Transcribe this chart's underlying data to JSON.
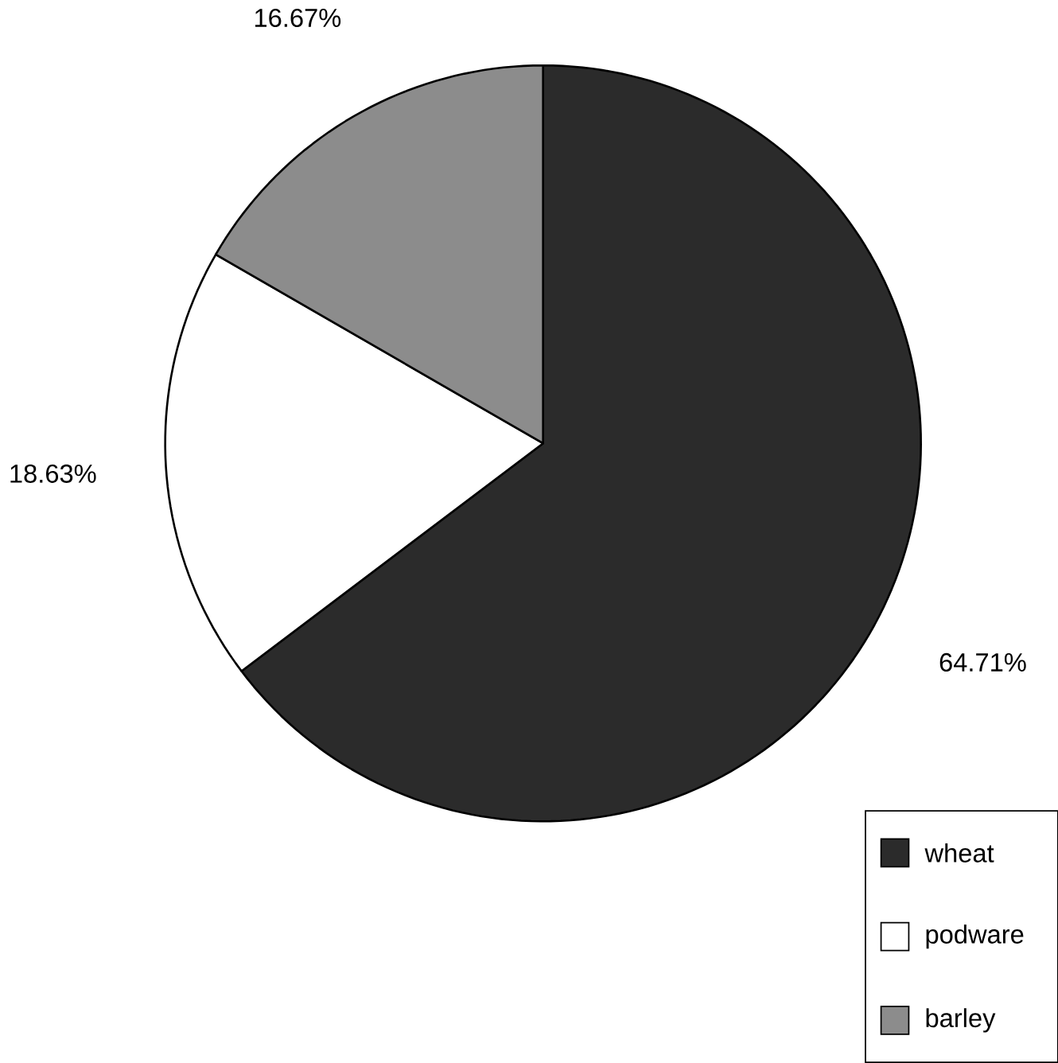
{
  "chart_data": {
    "type": "pie",
    "categories": [
      "wheat",
      "podware",
      "barley"
    ],
    "values": [
      64.71,
      18.63,
      16.67
    ],
    "colors": [
      "#2b2b2b",
      "#ffffff",
      "#8c8c8c"
    ],
    "value_labels": [
      "64.71%",
      "18.63%",
      "16.67%"
    ],
    "legend": "bottom right"
  }
}
